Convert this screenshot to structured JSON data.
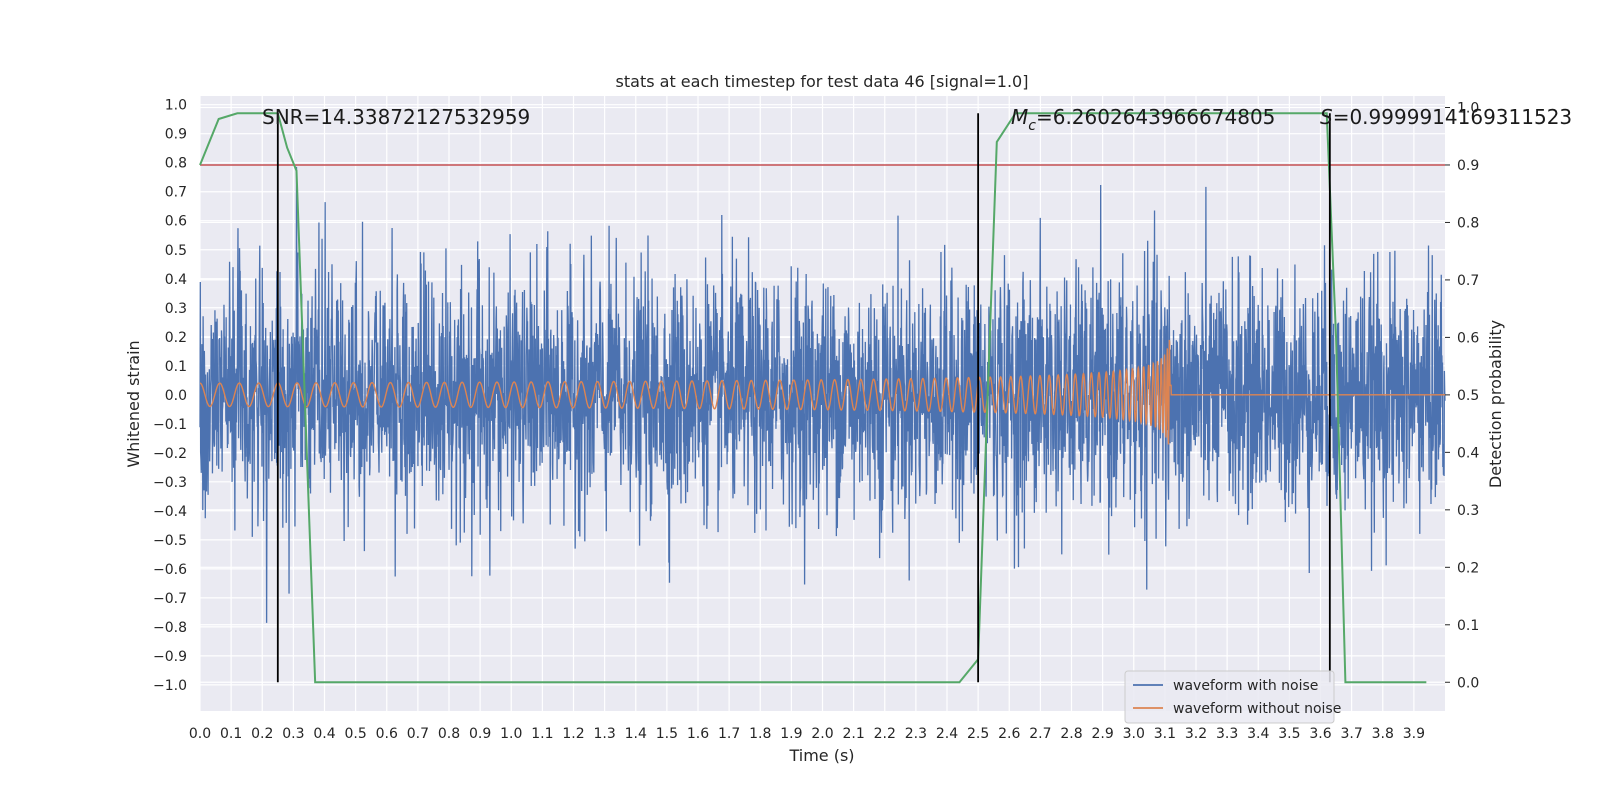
{
  "chart_data": {
    "type": "line",
    "title": "stats at each timestep for test data 46 [signal=1.0]",
    "xlabel": "Time (s)",
    "ylabel": "Whitened strain",
    "y2label": "Detection probability",
    "xlim": [
      0.0,
      4.0
    ],
    "ylim": [
      -1.09,
      1.03
    ],
    "y2lim": [
      -0.05,
      1.02
    ],
    "grid": true,
    "legend_position": "lower-right",
    "x_ticks": [
      "0.0",
      "0.1",
      "0.2",
      "0.3",
      "0.4",
      "0.5",
      "0.6",
      "0.7",
      "0.8",
      "0.9",
      "1.0",
      "1.1",
      "1.2",
      "1.3",
      "1.4",
      "1.5",
      "1.6",
      "1.7",
      "1.8",
      "1.9",
      "2.0",
      "2.1",
      "2.2",
      "2.3",
      "2.4",
      "2.5",
      "2.6",
      "2.7",
      "2.8",
      "2.9",
      "3.0",
      "3.1",
      "3.2",
      "3.3",
      "3.4",
      "3.5",
      "3.6",
      "3.7",
      "3.8",
      "3.9"
    ],
    "y_ticks": [
      "1.0",
      "0.9",
      "0.8",
      "0.7",
      "0.6",
      "0.5",
      "0.4",
      "0.3",
      "0.2",
      "0.1",
      "0.0",
      "−0.1",
      "−0.2",
      "−0.3",
      "−0.4",
      "−0.5",
      "−0.6",
      "−0.7",
      "−0.8",
      "−0.9",
      "−1.0"
    ],
    "y2_ticks": [
      "1.0",
      "0.9",
      "0.8",
      "0.7",
      "0.6",
      "0.5",
      "0.4",
      "0.3",
      "0.2",
      "0.1",
      "0.0"
    ],
    "annotations": {
      "snr": "SNR=14.33872127532959",
      "mc_symbol": "M",
      "mc_sub": "c",
      "mc_value": "=6.2602643966674805",
      "s_symbol": "S",
      "s_value": "=0.9999914169311523"
    },
    "series": [
      {
        "name": "waveform with noise",
        "color": "#4c72b0",
        "noise_std": 0.2,
        "peak_range": [
          -1.0,
          0.92
        ]
      },
      {
        "name": "waveform without noise",
        "color": "#dd8452",
        "chirp_start": 0.0,
        "merger_time": 3.12,
        "start_amplitude": 0.04,
        "merger_amplitude": 0.35
      }
    ],
    "detection_probability": {
      "color": "#55a868",
      "x": [
        0.0,
        0.06,
        0.12,
        0.18,
        0.25,
        0.28,
        0.31,
        0.37,
        0.44,
        0.5,
        1.0,
        1.5,
        2.0,
        2.4,
        2.44,
        2.5,
        2.56,
        2.62,
        2.7,
        3.0,
        3.5,
        3.62,
        3.65,
        3.68,
        3.7,
        3.75,
        3.8,
        3.9,
        3.94
      ],
      "y": [
        0.9,
        0.98,
        0.99,
        0.99,
        0.99,
        0.93,
        0.89,
        0.0,
        0.0,
        0.0,
        0.0,
        0.0,
        0.0,
        0.0,
        0.0,
        0.04,
        0.94,
        0.99,
        0.99,
        0.99,
        0.99,
        0.99,
        0.6,
        0.0,
        0.0,
        0.0,
        0.0,
        0.0,
        0.0
      ]
    },
    "threshold": {
      "value": 0.9,
      "color": "#c44e52"
    },
    "vertical_markers": [
      0.25,
      2.5,
      3.63
    ]
  }
}
